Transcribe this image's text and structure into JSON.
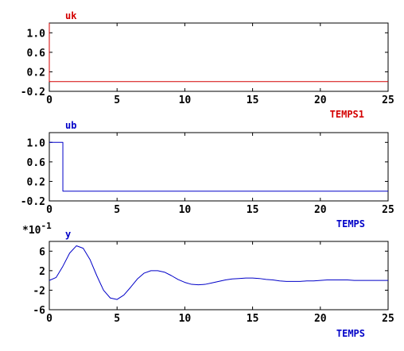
{
  "colors": {
    "red": "#d40000",
    "blue": "#0000c8",
    "axis": "#000000",
    "background": "#ffffff"
  },
  "chart_data": [
    {
      "type": "line",
      "title": "uk",
      "xlabel": "TEMPS1",
      "ylabel": "",
      "xlim": [
        0,
        25
      ],
      "ylim": [
        -0.2,
        1.2
      ],
      "x_ticks": [
        0,
        5,
        10,
        15,
        20,
        25
      ],
      "x_tick_labels": [
        "0",
        "5",
        "10",
        "15",
        "20",
        "25"
      ],
      "y_ticks": [
        1.0,
        0.6,
        0.2,
        -0.2
      ],
      "y_tick_labels": [
        "1.0",
        "0.6",
        "0.2",
        "-0.2"
      ],
      "y_multiplier": "",
      "grid": false,
      "color": "#d40000",
      "series": [
        {
          "x": [
            0,
            0,
            25
          ],
          "y": [
            1.2,
            0.0,
            0.0
          ]
        }
      ]
    },
    {
      "type": "line",
      "title": "ub",
      "xlabel": "TEMPS",
      "ylabel": "",
      "xlim": [
        0,
        25
      ],
      "ylim": [
        -0.2,
        1.2
      ],
      "x_ticks": [
        0,
        5,
        10,
        15,
        20,
        25
      ],
      "x_tick_labels": [
        "0",
        "5",
        "10",
        "15",
        "20",
        "25"
      ],
      "y_ticks": [
        1.0,
        0.6,
        0.2,
        -0.2
      ],
      "y_tick_labels": [
        "1.0",
        "0.6",
        "0.2",
        "-0.2"
      ],
      "y_multiplier": "",
      "grid": false,
      "color": "#0000c8",
      "series": [
        {
          "x": [
            0,
            1,
            1,
            25
          ],
          "y": [
            1.0,
            1.0,
            0.0,
            0.0
          ]
        }
      ]
    },
    {
      "type": "line",
      "title": "y",
      "xlabel": "TEMPS",
      "ylabel": "",
      "xlim": [
        0,
        25
      ],
      "ylim": [
        -6,
        8
      ],
      "x_ticks": [
        0,
        5,
        10,
        15,
        20,
        25
      ],
      "x_tick_labels": [
        "0",
        "5",
        "10",
        "15",
        "20",
        "25"
      ],
      "y_ticks": [
        6,
        2,
        -2,
        -6
      ],
      "y_tick_labels": [
        "6",
        "2",
        "-2",
        "-6"
      ],
      "y_multiplier": "*10",
      "y_multiplier_exp": "-1",
      "grid": false,
      "color": "#0000c8",
      "series": [
        {
          "x": [
            0,
            0.5,
            1.0,
            1.5,
            2.0,
            2.5,
            3.0,
            3.5,
            4.0,
            4.5,
            5.0,
            5.5,
            6.0,
            6.5,
            7.0,
            7.5,
            8.0,
            8.5,
            9.0,
            9.5,
            10.0,
            10.5,
            11.0,
            11.5,
            12.0,
            12.5,
            13.0,
            13.5,
            14.0,
            14.5,
            15.0,
            15.5,
            16.0,
            16.5,
            17.0,
            17.5,
            18.0,
            18.5,
            19.0,
            19.5,
            20.0,
            20.5,
            21.0,
            21.5,
            22.0,
            22.5,
            23.0,
            23.5,
            24.0,
            24.5,
            25.0
          ],
          "y": [
            0.0,
            0.6,
            2.9,
            5.6,
            7.1,
            6.6,
            4.3,
            1.0,
            -2.0,
            -3.6,
            -3.9,
            -3.0,
            -1.4,
            0.3,
            1.5,
            2.0,
            2.0,
            1.7,
            1.0,
            0.2,
            -0.4,
            -0.8,
            -0.9,
            -0.8,
            -0.5,
            -0.2,
            0.1,
            0.3,
            0.4,
            0.5,
            0.5,
            0.4,
            0.2,
            0.1,
            -0.1,
            -0.2,
            -0.2,
            -0.2,
            -0.1,
            -0.1,
            0.0,
            0.1,
            0.1,
            0.1,
            0.1,
            0.0,
            0.0,
            0.0,
            0.0,
            0.0,
            0.0
          ]
        }
      ]
    }
  ]
}
